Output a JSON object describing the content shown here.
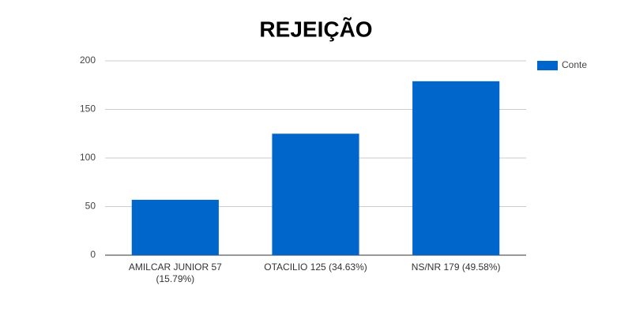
{
  "chart_data": {
    "type": "bar",
    "title": "REJEIÇÃO",
    "categories": [
      "AMILCAR JUNIOR 57 (15.79%)",
      "OTACILIO 125 (34.63%)",
      "NS/NR 179 (49.58%)"
    ],
    "series": [
      {
        "name": "Conte",
        "color": "#0066cc",
        "values": [
          57,
          125,
          179
        ]
      }
    ],
    "ylim": [
      0,
      200
    ],
    "yticks": [
      0,
      50,
      100,
      150,
      200
    ],
    "grid": true,
    "legend": "right"
  }
}
